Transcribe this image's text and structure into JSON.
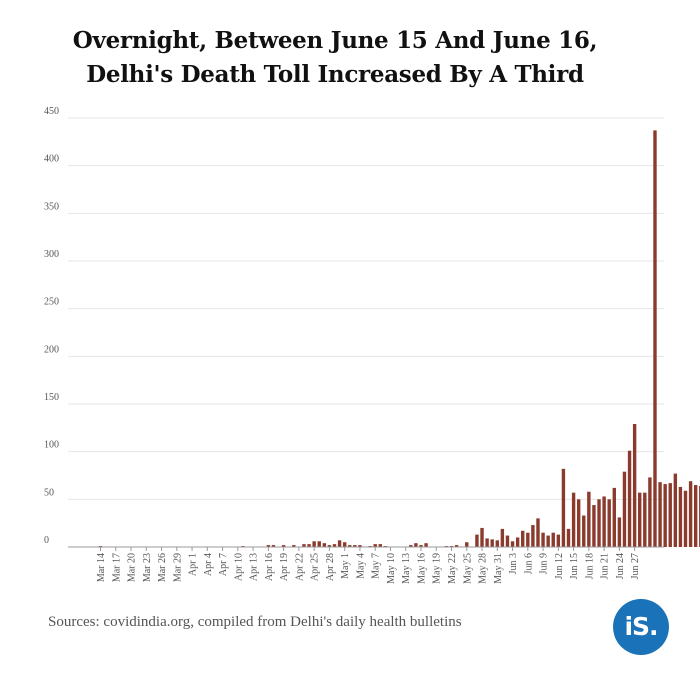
{
  "title_line1": "Overnight, Between June 15 And June 16,",
  "title_line2": "Delhi's Death Toll Increased By A Third",
  "source": "Sources: covidindia.org, compiled from Delhi's daily health bulletins",
  "logo_text": "iS.",
  "colors": {
    "bar": "#8b3a2e",
    "logo": "#1a73b8",
    "grid": "#e6e6e6",
    "axis": "#999999"
  },
  "chart_data": {
    "type": "bar",
    "title": "Overnight, Between June 15 And June 16, Delhi's Death Toll Increased By A Third",
    "xlabel": "",
    "ylabel": "",
    "ylim": [
      0,
      450
    ],
    "yticks": [
      0,
      50,
      100,
      150,
      200,
      250,
      300,
      350,
      400,
      450
    ],
    "grid": true,
    "xtick_labels": [
      "Mar 14",
      "Mar 17",
      "Mar 20",
      "Mar 23",
      "Mar 26",
      "Mar 29",
      "Apr 1",
      "Apr 4",
      "Apr 7",
      "Apr 10",
      "Apr 13",
      "Apr 16",
      "Apr 19",
      "Apr 22",
      "Apr 25",
      "Apr 28",
      "May 1",
      "May 4",
      "May 7",
      "May 10",
      "May 13",
      "May 16",
      "May 19",
      "May 22",
      "May 25",
      "May 28",
      "May 31",
      "Jun 3",
      "Jun 6",
      "Jun 9",
      "Jun 12",
      "Jun 15",
      "Jun 18",
      "Jun 21",
      "Jun 24",
      "Jun 27"
    ],
    "start_date": "Mar 14",
    "values": [
      1,
      0,
      0,
      0,
      0,
      0,
      0,
      0,
      0,
      0,
      0,
      0,
      0,
      0,
      0,
      0,
      0,
      0,
      0,
      0,
      0,
      0,
      0,
      0,
      0,
      0,
      0,
      0,
      1,
      0,
      0,
      0,
      0,
      2,
      2,
      0,
      2,
      0,
      2,
      0,
      3,
      3,
      6,
      6,
      4,
      2,
      3,
      7,
      5,
      2,
      2,
      2,
      0,
      1,
      3,
      3,
      1,
      0,
      0,
      0,
      0,
      2,
      4,
      2,
      4,
      0,
      0,
      0,
      1,
      1,
      2,
      0,
      5,
      0,
      13,
      20,
      9,
      8,
      7,
      19,
      12,
      6,
      10,
      17,
      15,
      23,
      30,
      15,
      12,
      15,
      13,
      82,
      19,
      57,
      50,
      33,
      58,
      44,
      50,
      53,
      50,
      62,
      31,
      79,
      101,
      129,
      57,
      57,
      73,
      437,
      68,
      66,
      67,
      77,
      63,
      59,
      69,
      65,
      64,
      63,
      66
    ]
  }
}
